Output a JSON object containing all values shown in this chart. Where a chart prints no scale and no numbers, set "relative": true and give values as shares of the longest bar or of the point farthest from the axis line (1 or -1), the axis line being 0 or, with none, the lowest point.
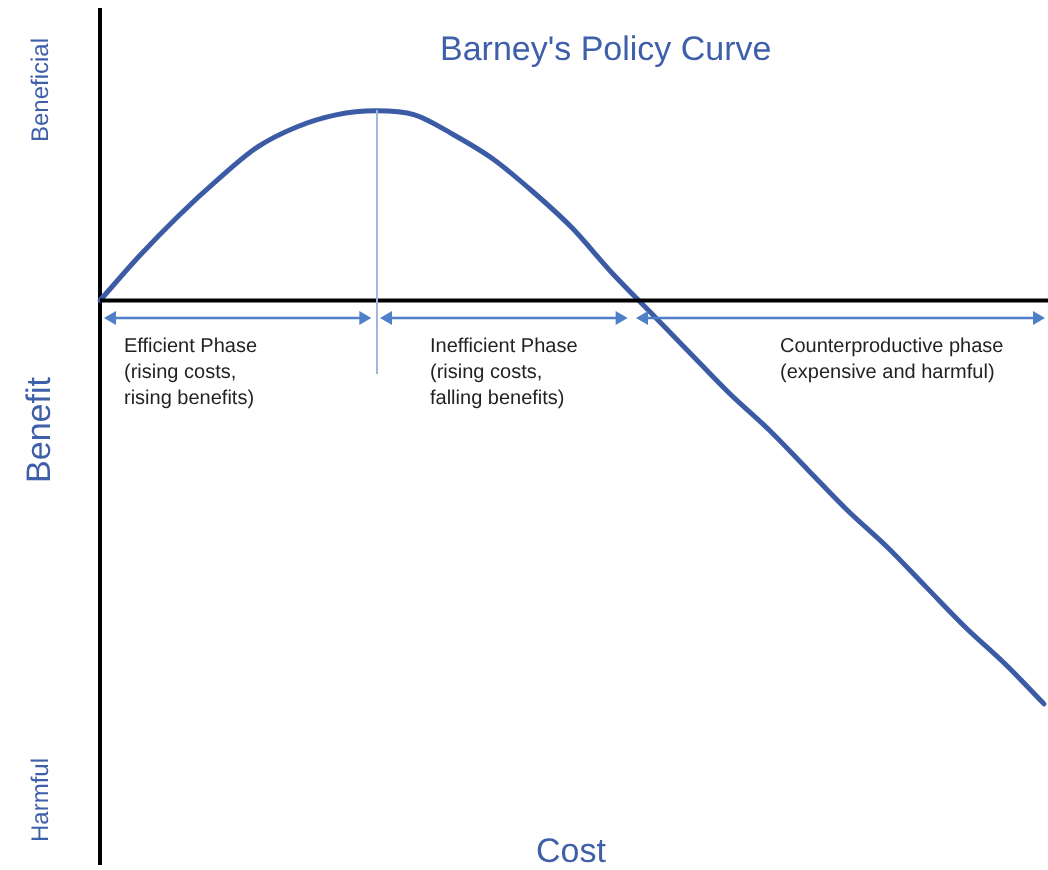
{
  "chart_data": {
    "type": "line",
    "relative": true,
    "title": "Barney's Policy Curve",
    "xlabel": "Cost",
    "ylabel": "Benefit",
    "categories": [
      null,
      null,
      null,
      null,
      null,
      null,
      null,
      null,
      null,
      null,
      null,
      null,
      null,
      null,
      null,
      null,
      null,
      null,
      null,
      null,
      null,
      null,
      null,
      null,
      null
    ],
    "series": [
      {
        "color": "#3b5ba5",
        "values": [
          0,
          0.11,
          0.21,
          0.3,
          0.38,
          0.43,
          0.46,
          0.47,
          0.46,
          0.41,
          0.35,
          0.27,
          0.18,
          0.07,
          -0.03,
          -0.13,
          -0.23,
          -0.32,
          -0.42,
          -0.52,
          -0.61,
          -0.71,
          -0.81,
          -0.9,
          -1
        ]
      }
    ],
    "marker": "none",
    "line_style": "solid",
    "grid": false,
    "legend": false,
    "annotations": [
      "Beneficial",
      "Harmful",
      "Efficient Phase\n(rising costs,\nrising benefits)",
      "Inefficient Phase\n(rising costs,\nfalling benefits)",
      "Counterproductive phase\n(expensive and harmful)"
    ]
  }
}
